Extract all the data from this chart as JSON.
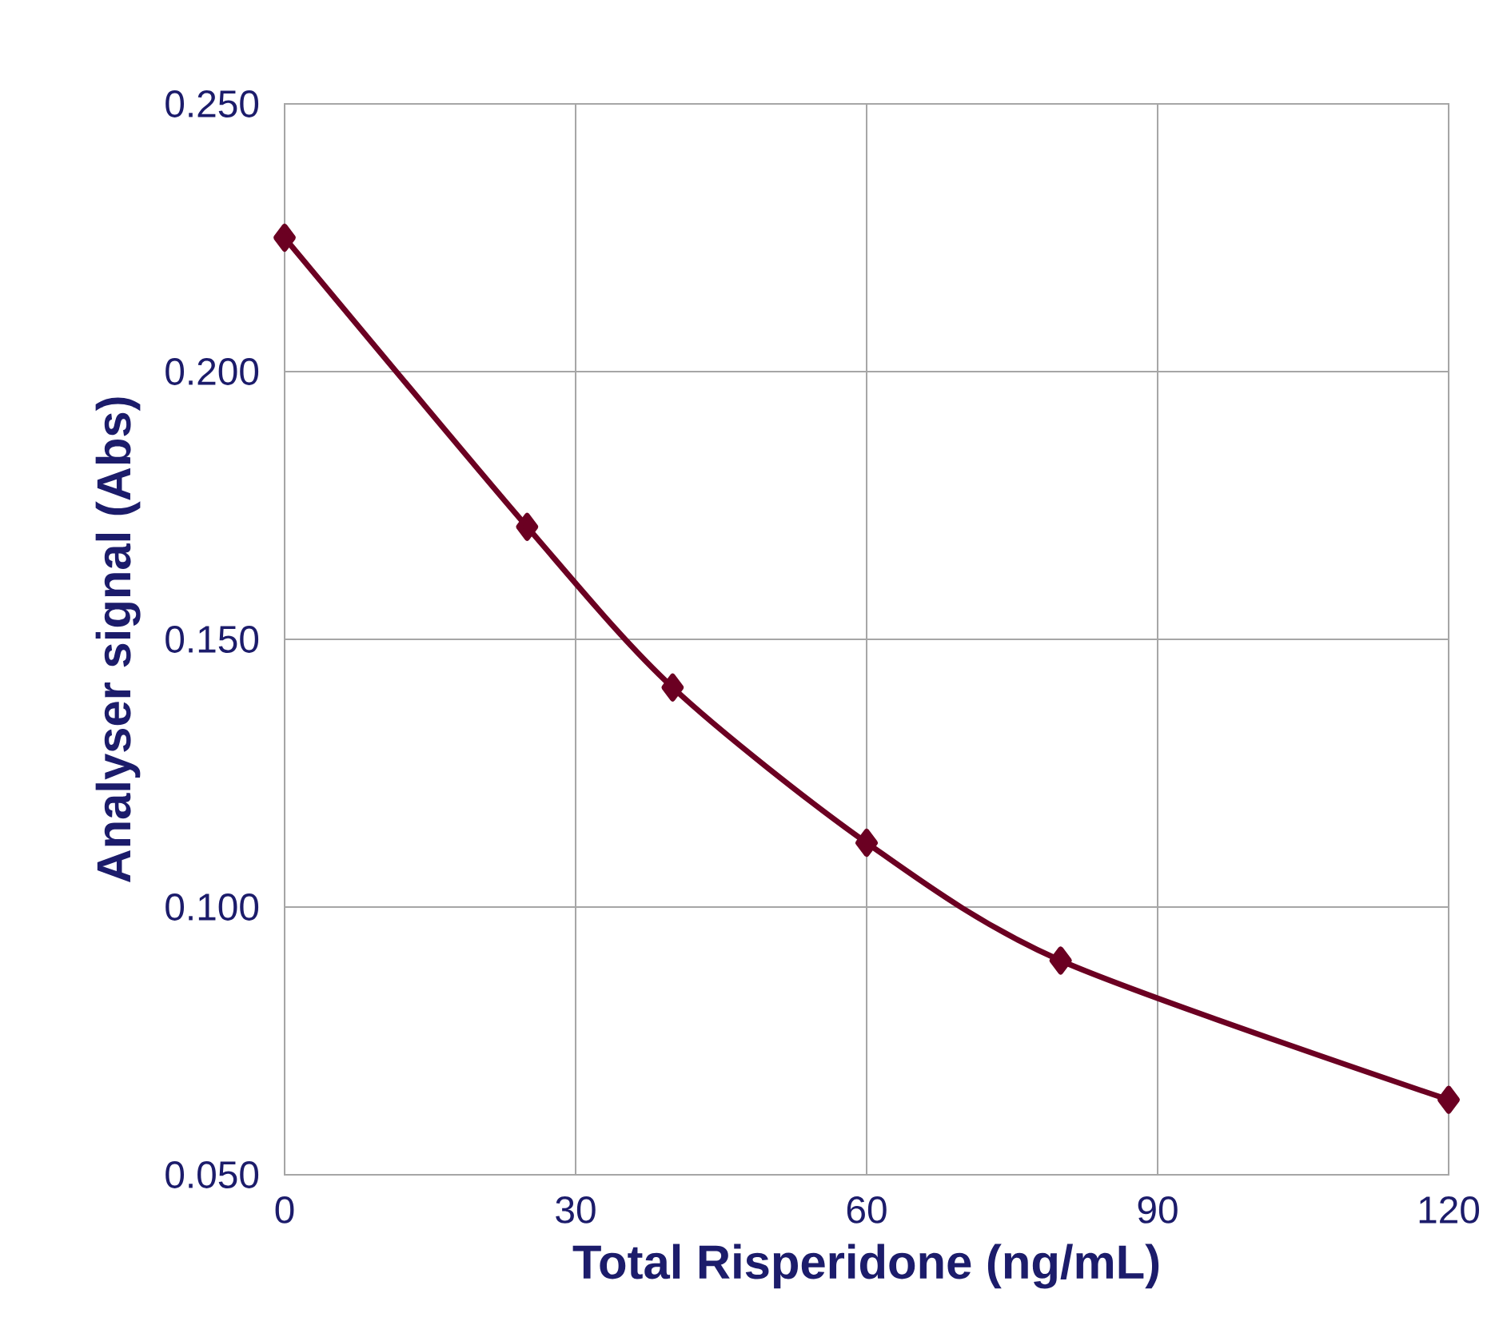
{
  "chart_data": {
    "type": "line",
    "xlabel": "Total Risperidone (ng/mL)",
    "ylabel": "Analyser signal (Abs)",
    "x": [
      0,
      25,
      40,
      60,
      80,
      120
    ],
    "series": [
      {
        "color": "#6b0022",
        "values": [
          0.225,
          0.171,
          0.141,
          0.112,
          0.09,
          0.064
        ]
      }
    ],
    "xlim": [
      0,
      120
    ],
    "xticks": [
      0,
      30,
      60,
      90,
      120
    ],
    "ylim": [
      0.05,
      0.25
    ],
    "yticks": [
      {
        "value": 0.05,
        "label": "0.050"
      },
      {
        "value": 0.1,
        "label": "0.100"
      },
      {
        "value": 0.15,
        "label": "0.150"
      },
      {
        "value": 0.2,
        "label": "0.200"
      },
      {
        "value": 0.25,
        "label": "0.250"
      }
    ],
    "grid": true,
    "marker": "diamond",
    "line_style": "solid"
  }
}
